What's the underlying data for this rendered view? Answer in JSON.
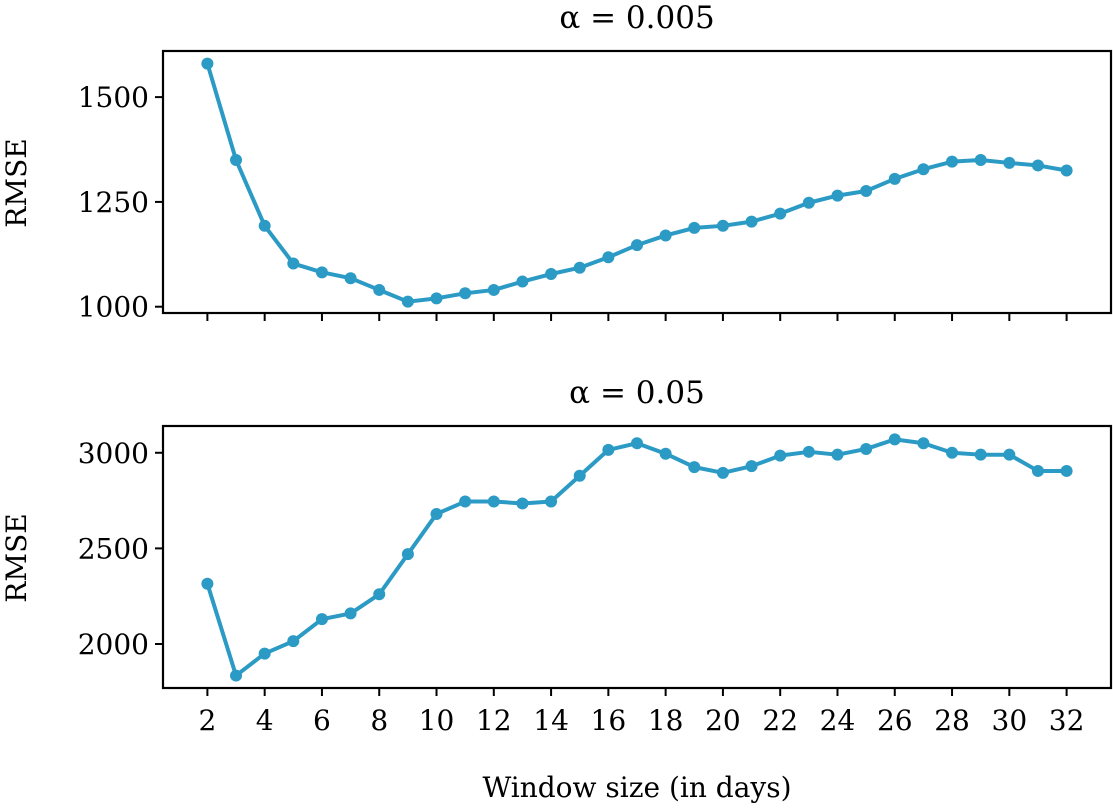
{
  "chart_data": [
    {
      "type": "line",
      "title": "α = 0.005",
      "ylabel": "RMSE",
      "xlabel": "",
      "ylim": [
        985,
        1610
      ],
      "yticks": [
        1000,
        1250,
        1500
      ],
      "grid": false,
      "series": [
        {
          "color": "#2b9ac4",
          "x": [
            2,
            3,
            4,
            5,
            6,
            7,
            8,
            9,
            10,
            11,
            12,
            13,
            14,
            15,
            16,
            17,
            18,
            19,
            20,
            21,
            22,
            23,
            24,
            25,
            26,
            27,
            28,
            29,
            30,
            31,
            32
          ],
          "values": [
            1580,
            1350,
            1193,
            1103,
            1082,
            1068,
            1040,
            1012,
            1020,
            1032,
            1040,
            1060,
            1078,
            1093,
            1118,
            1147,
            1170,
            1188,
            1193,
            1203,
            1222,
            1248,
            1265,
            1276,
            1305,
            1328,
            1346,
            1350,
            1343,
            1337,
            1325
          ]
        }
      ]
    },
    {
      "type": "line",
      "title": "α = 0.05",
      "ylabel": "RMSE",
      "xlabel": "Window size (in days)",
      "ylim": [
        1770,
        3140
      ],
      "yticks": [
        2000,
        2500,
        3000
      ],
      "grid": false,
      "series": [
        {
          "color": "#2b9ac4",
          "x": [
            2,
            3,
            4,
            5,
            6,
            7,
            8,
            9,
            10,
            11,
            12,
            13,
            14,
            15,
            16,
            17,
            18,
            19,
            20,
            21,
            22,
            23,
            24,
            25,
            26,
            27,
            28,
            29,
            30,
            31,
            32
          ],
          "values": [
            2315,
            1835,
            1950,
            2015,
            2130,
            2160,
            2260,
            2470,
            2680,
            2745,
            2745,
            2735,
            2745,
            2880,
            3015,
            3050,
            2995,
            2925,
            2895,
            2930,
            2985,
            3005,
            2990,
            3020,
            3070,
            3050,
            3000,
            2990,
            2990,
            2905,
            2905
          ]
        }
      ]
    }
  ],
  "x_ticks": [
    "2",
    "4",
    "6",
    "8",
    "10",
    "12",
    "14",
    "16",
    "18",
    "20",
    "22",
    "24",
    "26",
    "28",
    "30",
    "32"
  ],
  "x_tick_values": [
    2,
    4,
    6,
    8,
    10,
    12,
    14,
    16,
    18,
    20,
    22,
    24,
    26,
    28,
    30,
    32
  ],
  "xlim": [
    0.45,
    33.55
  ]
}
